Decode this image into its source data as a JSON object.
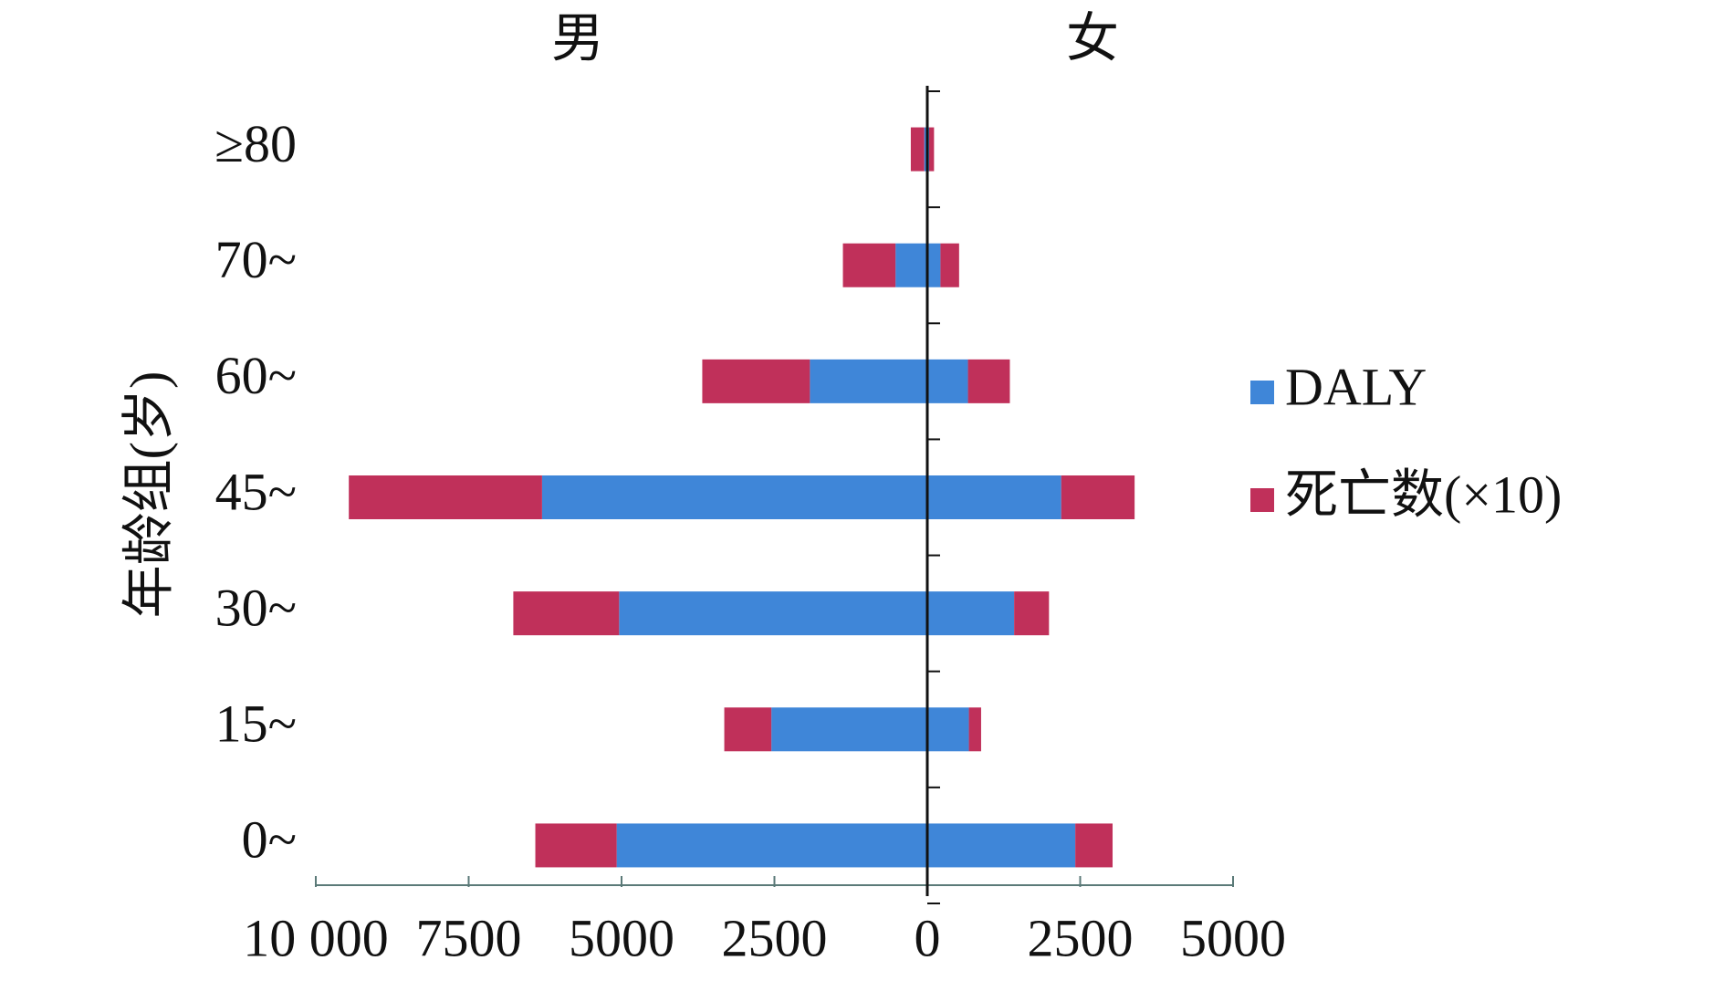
{
  "chart_data": {
    "type": "bar",
    "orientation": "horizontal",
    "ylabel": "年龄组(岁)",
    "categories": [
      "0~",
      "15~",
      "30~",
      "45~",
      "60~",
      "70~",
      "≥80"
    ],
    "series": [
      {
        "name": "DALY",
        "color": "#3f86d8"
      },
      {
        "name": "死亡数(×10)",
        "color": "#c0305a"
      }
    ],
    "panels": [
      {
        "title": "男",
        "direction": "left",
        "xlim": [
          0,
          10000
        ],
        "xticks": [
          0,
          2500,
          5000,
          7500,
          {
            "value": 10000,
            "label": "10 000"
          }
        ],
        "values": [
          [
            5080,
            2550,
            5040,
            6300,
            1920,
            520,
            50
          ],
          [
            1330,
            770,
            1730,
            3160,
            1760,
            860,
            220
          ]
        ]
      },
      {
        "title": "女",
        "direction": "right",
        "xlim": [
          0,
          5000
        ],
        "xticks": [
          2500,
          5000
        ],
        "values": [
          [
            2420,
            680,
            1420,
            2190,
            665,
            215,
            30
          ],
          [
            610,
            200,
            570,
            1200,
            685,
            305,
            80
          ]
        ]
      }
    ]
  }
}
